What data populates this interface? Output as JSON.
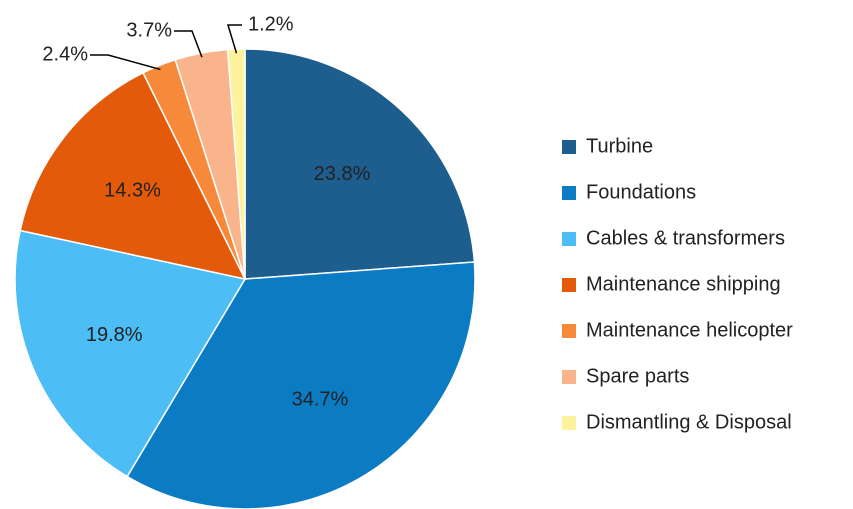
{
  "chart_data": {
    "type": "pie",
    "categories": [
      "Turbine",
      "Foundations",
      "Cables & transformers",
      "Maintenance shipping",
      "Maintenance helicopter",
      "Spare parts",
      "Dismantling & Disposal"
    ],
    "values": [
      23.8,
      34.7,
      19.8,
      14.3,
      2.4,
      3.7,
      1.2
    ],
    "value_labels": [
      "23.8%",
      "34.7%",
      "19.8%",
      "14.3%",
      "2.4%",
      "3.7%",
      "1.2%"
    ],
    "colors": [
      "#1d5e8e",
      "#0b7bc4",
      "#4cbdf5",
      "#e35a0b",
      "#f7893a",
      "#f9b48b",
      "#fdf29d"
    ],
    "legend": "right"
  }
}
